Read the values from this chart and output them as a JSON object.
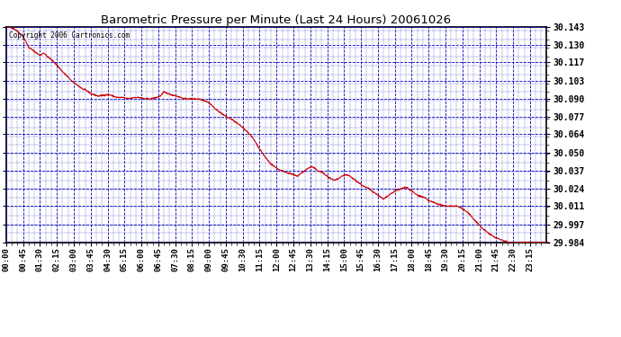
{
  "title": "Barometric Pressure per Minute (Last 24 Hours) 20061026",
  "copyright": "Copyright 2006 Cartronics.com",
  "bg_color": "#ffffff",
  "plot_bg_color": "#ffffff",
  "line_color": "#cc0000",
  "grid_color": "#0000bb",
  "border_color": "#000000",
  "ylim": [
    29.984,
    30.143
  ],
  "yticks": [
    29.984,
    29.997,
    30.011,
    30.024,
    30.037,
    30.05,
    30.064,
    30.077,
    30.09,
    30.103,
    30.117,
    30.13,
    30.143
  ],
  "ytick_labels": [
    "29.984",
    "29.997",
    "30.011",
    "30.024",
    "30.037",
    "30.050",
    "30.064",
    "30.077",
    "30.090",
    "30.103",
    "30.117",
    "30.130",
    "30.143"
  ],
  "xtick_labels": [
    "00:00",
    "00:45",
    "01:30",
    "02:15",
    "03:00",
    "03:45",
    "04:30",
    "05:15",
    "06:00",
    "06:45",
    "07:30",
    "08:15",
    "09:00",
    "09:45",
    "10:30",
    "11:15",
    "12:00",
    "12:45",
    "13:30",
    "14:15",
    "15:00",
    "15:45",
    "16:30",
    "17:15",
    "18:00",
    "18:45",
    "19:30",
    "20:15",
    "21:00",
    "21:45",
    "22:30",
    "23:15"
  ],
  "keypoints": [
    [
      0,
      30.143
    ],
    [
      10,
      30.143
    ],
    [
      25,
      30.141
    ],
    [
      45,
      30.136
    ],
    [
      60,
      30.128
    ],
    [
      70,
      30.126
    ],
    [
      80,
      30.124
    ],
    [
      90,
      30.122
    ],
    [
      100,
      30.124
    ],
    [
      110,
      30.121
    ],
    [
      120,
      30.119
    ],
    [
      135,
      30.115
    ],
    [
      150,
      30.11
    ],
    [
      165,
      30.106
    ],
    [
      175,
      30.103
    ],
    [
      185,
      30.101
    ],
    [
      195,
      30.099
    ],
    [
      205,
      30.097
    ],
    [
      215,
      30.096
    ],
    [
      225,
      30.094
    ],
    [
      235,
      30.093
    ],
    [
      245,
      30.092
    ],
    [
      265,
      30.093
    ],
    [
      275,
      30.093
    ],
    [
      285,
      30.092
    ],
    [
      295,
      30.091
    ],
    [
      310,
      30.091
    ],
    [
      325,
      30.09
    ],
    [
      340,
      30.091
    ],
    [
      355,
      30.091
    ],
    [
      370,
      30.09
    ],
    [
      385,
      30.09
    ],
    [
      400,
      30.091
    ],
    [
      410,
      30.092
    ],
    [
      420,
      30.095
    ],
    [
      430,
      30.094
    ],
    [
      440,
      30.093
    ],
    [
      455,
      30.092
    ],
    [
      465,
      30.091
    ],
    [
      475,
      30.09
    ],
    [
      490,
      30.09
    ],
    [
      500,
      30.09
    ],
    [
      515,
      30.09
    ],
    [
      525,
      30.089
    ],
    [
      535,
      30.088
    ],
    [
      545,
      30.086
    ],
    [
      555,
      30.083
    ],
    [
      565,
      30.081
    ],
    [
      575,
      30.079
    ],
    [
      585,
      30.077
    ],
    [
      600,
      30.075
    ],
    [
      615,
      30.072
    ],
    [
      630,
      30.069
    ],
    [
      645,
      30.065
    ],
    [
      660,
      30.06
    ],
    [
      675,
      30.053
    ],
    [
      690,
      30.047
    ],
    [
      705,
      30.042
    ],
    [
      715,
      30.04
    ],
    [
      725,
      30.038
    ],
    [
      735,
      30.037
    ],
    [
      745,
      30.036
    ],
    [
      755,
      30.035
    ],
    [
      765,
      30.034
    ],
    [
      775,
      30.033
    ],
    [
      785,
      30.035
    ],
    [
      795,
      30.037
    ],
    [
      805,
      30.039
    ],
    [
      815,
      30.04
    ],
    [
      820,
      30.039
    ],
    [
      830,
      30.037
    ],
    [
      840,
      30.036
    ],
    [
      855,
      30.033
    ],
    [
      865,
      30.031
    ],
    [
      875,
      30.03
    ],
    [
      885,
      30.031
    ],
    [
      895,
      30.033
    ],
    [
      905,
      30.034
    ],
    [
      915,
      30.033
    ],
    [
      925,
      30.031
    ],
    [
      935,
      30.029
    ],
    [
      945,
      30.027
    ],
    [
      955,
      30.025
    ],
    [
      965,
      30.024
    ],
    [
      975,
      30.022
    ],
    [
      985,
      30.02
    ],
    [
      995,
      30.018
    ],
    [
      1005,
      30.016
    ],
    [
      1010,
      30.017
    ],
    [
      1015,
      30.018
    ],
    [
      1020,
      30.019
    ],
    [
      1025,
      30.02
    ],
    [
      1030,
      30.021
    ],
    [
      1035,
      30.022
    ],
    [
      1045,
      30.023
    ],
    [
      1055,
      30.024
    ],
    [
      1065,
      30.025
    ],
    [
      1070,
      30.024
    ],
    [
      1075,
      30.023
    ],
    [
      1080,
      30.022
    ],
    [
      1085,
      30.021
    ],
    [
      1090,
      30.02
    ],
    [
      1095,
      30.019
    ],
    [
      1105,
      30.018
    ],
    [
      1115,
      30.017
    ],
    [
      1120,
      30.016
    ],
    [
      1125,
      30.015
    ],
    [
      1135,
      30.014
    ],
    [
      1145,
      30.013
    ],
    [
      1155,
      30.012
    ],
    [
      1165,
      30.011
    ],
    [
      1175,
      30.011
    ],
    [
      1185,
      30.011
    ],
    [
      1195,
      30.011
    ],
    [
      1200,
      30.011
    ],
    [
      1210,
      30.01
    ],
    [
      1220,
      30.008
    ],
    [
      1230,
      30.006
    ],
    [
      1240,
      30.003
    ],
    [
      1250,
      30.0
    ],
    [
      1260,
      29.997
    ],
    [
      1270,
      29.994
    ],
    [
      1280,
      29.992
    ],
    [
      1290,
      29.99
    ],
    [
      1300,
      29.988
    ],
    [
      1310,
      29.987
    ],
    [
      1320,
      29.986
    ],
    [
      1330,
      29.985
    ],
    [
      1340,
      29.984
    ],
    [
      1360,
      29.984
    ],
    [
      1439,
      29.984
    ]
  ]
}
